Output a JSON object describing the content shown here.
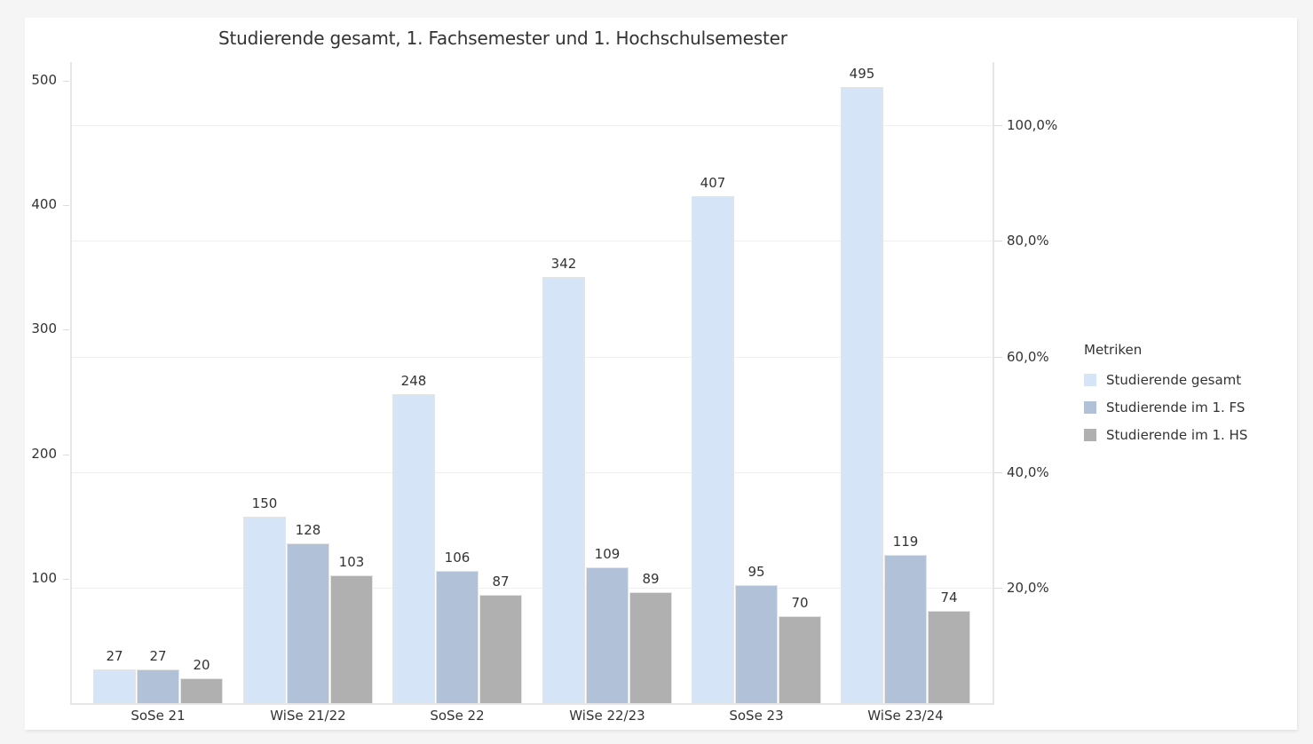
{
  "chart_data": {
    "type": "bar",
    "title": "Studierende gesamt, 1. Fachsemester und 1. Hochschulsemester",
    "xlabel": "",
    "ylabel": "",
    "categories": [
      "SoSe 21",
      "WiSe 21/22",
      "SoSe 22",
      "WiSe 22/23",
      "SoSe 23",
      "WiSe 23/24"
    ],
    "series": [
      {
        "name": "Studierende gesamt",
        "color": "#d6e4f8",
        "values": [
          27,
          150,
          248,
          342,
          407,
          495
        ]
      },
      {
        "name": "Studierende im 1. FS",
        "color": "#b0c1d8",
        "values": [
          27,
          128,
          106,
          109,
          95,
          119
        ]
      },
      {
        "name": "Studierende im 1. HS",
        "color": "#b0b0b0",
        "values": [
          20,
          103,
          87,
          89,
          70,
          74
        ]
      }
    ],
    "ylim": [
      0,
      515
    ],
    "yticks_left": [
      "500",
      "400",
      "300",
      "200",
      "100"
    ],
    "yticks_right": [
      "100,0%",
      "80,0%",
      "60,0%",
      "40,0%",
      "20,0%"
    ],
    "y2lim": [
      0,
      1.11
    ],
    "grid": true,
    "legend_title": "Metriken",
    "legend_position": "right"
  }
}
